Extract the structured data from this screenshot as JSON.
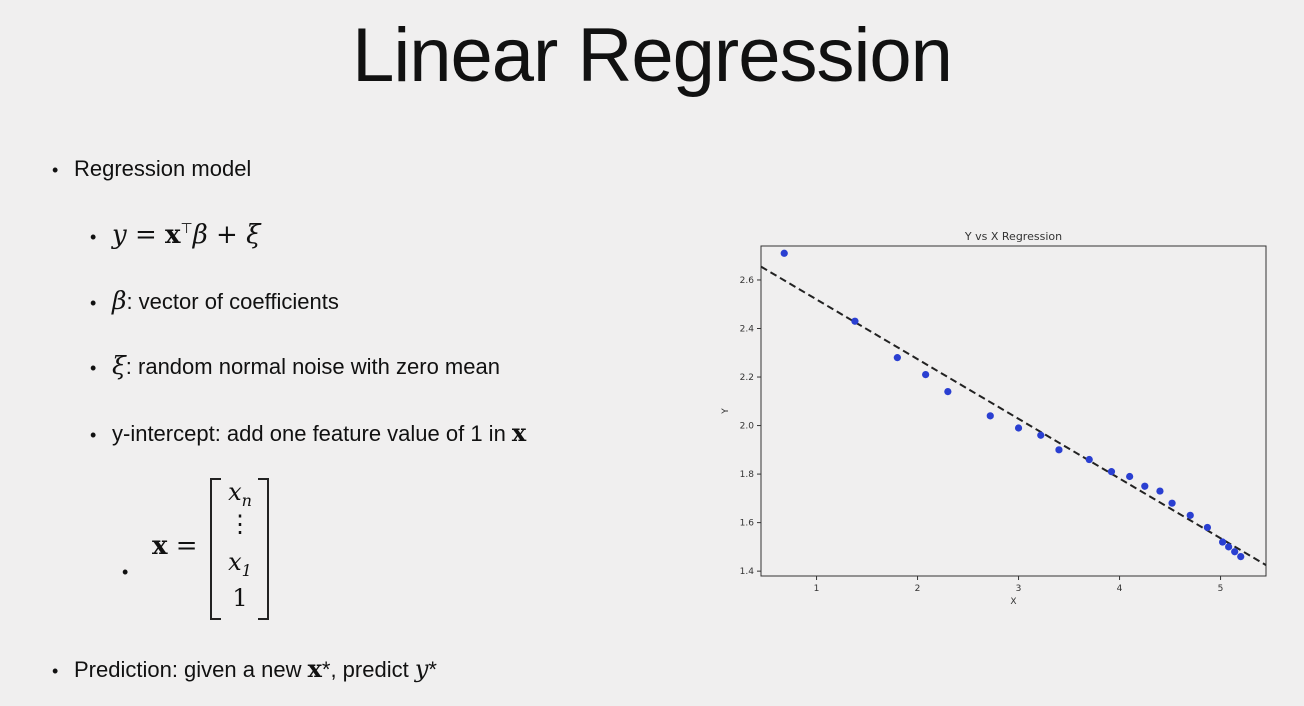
{
  "slide": {
    "title": "Linear Regression",
    "bullet_dot": "•",
    "bullets": {
      "model": "Regression model",
      "eq_y": "y",
      "eq_equals": " = ",
      "eq_x": "x",
      "eq_T": "⊤",
      "eq_beta": "β",
      "eq_plus": " + ",
      "eq_xi": "ξ",
      "beta_symbol": "β",
      "beta_desc": ": vector of coefficients",
      "xi_symbol": "ξ",
      "xi_desc": ": random normal noise with zero mean",
      "intercept_text": "y-intercept: add one feature value of 1 in ",
      "intercept_x": "x",
      "matrix_lhs": "x",
      "matrix_eq": " = ",
      "matrix_entries": [
        "x",
        "⋮",
        "x",
        "1"
      ],
      "matrix_subs": [
        "n",
        "",
        "1",
        ""
      ],
      "prediction_text": "Prediction: given a new ",
      "prediction_x": "x",
      "prediction_star": "*",
      "prediction_mid": ", predict ",
      "prediction_y": "y",
      "prediction_ystar": "*"
    }
  },
  "chart_data": {
    "type": "scatter",
    "title": "Y vs X Regression",
    "xlabel": "X",
    "ylabel": "Y",
    "xlim": [
      0.45,
      5.45
    ],
    "ylim": [
      1.38,
      2.74
    ],
    "xticks": [
      1,
      2,
      3,
      4,
      5
    ],
    "yticks": [
      1.4,
      1.6,
      1.8,
      2.0,
      2.2,
      2.4,
      2.6
    ],
    "ytick_labels": [
      "1.4",
      "1.6",
      "1.8",
      "2.0",
      "2.2",
      "2.4",
      "2.6"
    ],
    "grid": false,
    "point_color": "#2a3fd1",
    "line_color": "#222222",
    "points": {
      "x": [
        0.68,
        1.38,
        1.8,
        2.08,
        2.3,
        2.72,
        3.0,
        3.22,
        3.4,
        3.7,
        3.92,
        4.1,
        4.25,
        4.4,
        4.52,
        4.7,
        4.87,
        5.02,
        5.08,
        5.14,
        5.2
      ],
      "y": [
        2.71,
        2.43,
        2.28,
        2.21,
        2.14,
        2.04,
        1.99,
        1.96,
        1.9,
        1.86,
        1.81,
        1.79,
        1.75,
        1.73,
        1.68,
        1.63,
        1.58,
        1.52,
        1.5,
        1.48,
        1.46
      ]
    },
    "fit_line": {
      "x": [
        0.45,
        5.45
      ],
      "y": [
        2.655,
        1.425
      ]
    }
  }
}
